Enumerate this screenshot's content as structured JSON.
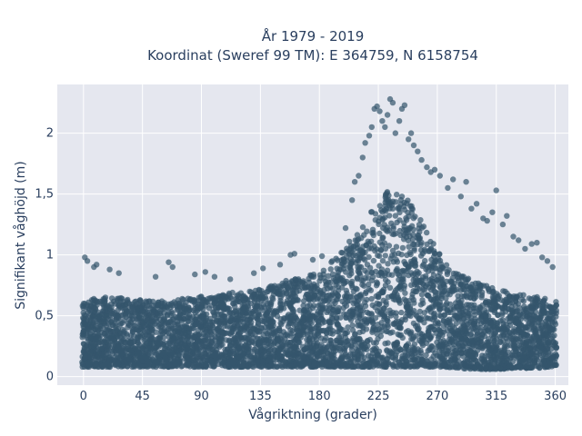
{
  "chart_data": {
    "type": "scatter",
    "title_line1": "År 1979 - 2019",
    "title_line2": "Koordinat (Sweref 99 TM): E 364759, N 6158754",
    "xlabel": "Vågriktning (grader)",
    "ylabel": "Signifikant våghöjd (m)",
    "xlim": [
      -20,
      370
    ],
    "ylim": [
      -0.07,
      2.4
    ],
    "xticks": [
      0,
      45,
      90,
      135,
      180,
      225,
      270,
      315,
      360
    ],
    "xtick_labels": [
      "0",
      "45",
      "90",
      "135",
      "180",
      "225",
      "270",
      "315",
      "360"
    ],
    "yticks": [
      0,
      0.5,
      1,
      1.5,
      2
    ],
    "ytick_labels": [
      "0",
      "0,5",
      "1",
      "1,5",
      "2"
    ],
    "grid": true,
    "marker_color": "#34566c",
    "plot_bg": "#e5e7ef",
    "envelope": {
      "direction": [
        0,
        15,
        30,
        45,
        60,
        75,
        90,
        105,
        120,
        135,
        150,
        165,
        180,
        195,
        205,
        215,
        225,
        235,
        245,
        255,
        265,
        275,
        285,
        300,
        315,
        330,
        345,
        360
      ],
      "min_height": [
        0.08,
        0.08,
        0.08,
        0.08,
        0.08,
        0.08,
        0.08,
        0.08,
        0.08,
        0.08,
        0.08,
        0.08,
        0.08,
        0.08,
        0.08,
        0.08,
        0.08,
        0.08,
        0.08,
        0.08,
        0.08,
        0.08,
        0.07,
        0.06,
        0.06,
        0.07,
        0.07,
        0.08
      ],
      "dense_max_height": [
        0.62,
        0.66,
        0.65,
        0.63,
        0.62,
        0.64,
        0.66,
        0.68,
        0.7,
        0.72,
        0.78,
        0.82,
        0.86,
        1.0,
        1.15,
        1.3,
        1.45,
        1.55,
        1.5,
        1.35,
        1.15,
        0.95,
        0.85,
        0.78,
        0.72,
        0.68,
        0.66,
        0.62
      ]
    },
    "outliers": [
      {
        "x": 1,
        "y": 0.98
      },
      {
        "x": 3,
        "y": 0.95
      },
      {
        "x": 8,
        "y": 0.9
      },
      {
        "x": 10,
        "y": 0.92
      },
      {
        "x": 20,
        "y": 0.88
      },
      {
        "x": 27,
        "y": 0.85
      },
      {
        "x": 55,
        "y": 0.82
      },
      {
        "x": 65,
        "y": 0.94
      },
      {
        "x": 68,
        "y": 0.9
      },
      {
        "x": 85,
        "y": 0.84
      },
      {
        "x": 93,
        "y": 0.86
      },
      {
        "x": 100,
        "y": 0.82
      },
      {
        "x": 112,
        "y": 0.8
      },
      {
        "x": 130,
        "y": 0.85
      },
      {
        "x": 137,
        "y": 0.89
      },
      {
        "x": 150,
        "y": 0.92
      },
      {
        "x": 158,
        "y": 1.0
      },
      {
        "x": 161,
        "y": 1.01
      },
      {
        "x": 175,
        "y": 0.96
      },
      {
        "x": 182,
        "y": 0.99
      },
      {
        "x": 200,
        "y": 1.22
      },
      {
        "x": 205,
        "y": 1.45
      },
      {
        "x": 207,
        "y": 1.6
      },
      {
        "x": 210,
        "y": 1.65
      },
      {
        "x": 213,
        "y": 1.8
      },
      {
        "x": 215,
        "y": 1.92
      },
      {
        "x": 218,
        "y": 1.98
      },
      {
        "x": 220,
        "y": 2.05
      },
      {
        "x": 222,
        "y": 2.2
      },
      {
        "x": 224,
        "y": 2.22
      },
      {
        "x": 226,
        "y": 2.18
      },
      {
        "x": 228,
        "y": 2.1
      },
      {
        "x": 230,
        "y": 2.05
      },
      {
        "x": 232,
        "y": 2.15
      },
      {
        "x": 234,
        "y": 2.28
      },
      {
        "x": 236,
        "y": 2.25
      },
      {
        "x": 238,
        "y": 2.0
      },
      {
        "x": 241,
        "y": 2.1
      },
      {
        "x": 243,
        "y": 2.2
      },
      {
        "x": 245,
        "y": 2.23
      },
      {
        "x": 248,
        "y": 1.95
      },
      {
        "x": 250,
        "y": 2.0
      },
      {
        "x": 252,
        "y": 1.9
      },
      {
        "x": 255,
        "y": 1.85
      },
      {
        "x": 258,
        "y": 1.78
      },
      {
        "x": 262,
        "y": 1.72
      },
      {
        "x": 265,
        "y": 1.68
      },
      {
        "x": 268,
        "y": 1.7
      },
      {
        "x": 272,
        "y": 1.65
      },
      {
        "x": 278,
        "y": 1.55
      },
      {
        "x": 282,
        "y": 1.62
      },
      {
        "x": 288,
        "y": 1.48
      },
      {
        "x": 292,
        "y": 1.6
      },
      {
        "x": 296,
        "y": 1.38
      },
      {
        "x": 300,
        "y": 1.42
      },
      {
        "x": 305,
        "y": 1.3
      },
      {
        "x": 308,
        "y": 1.28
      },
      {
        "x": 312,
        "y": 1.35
      },
      {
        "x": 315,
        "y": 1.53
      },
      {
        "x": 320,
        "y": 1.25
      },
      {
        "x": 323,
        "y": 1.32
      },
      {
        "x": 328,
        "y": 1.15
      },
      {
        "x": 332,
        "y": 1.12
      },
      {
        "x": 337,
        "y": 1.05
      },
      {
        "x": 342,
        "y": 1.09
      },
      {
        "x": 346,
        "y": 1.1
      },
      {
        "x": 350,
        "y": 0.98
      },
      {
        "x": 354,
        "y": 0.95
      },
      {
        "x": 358,
        "y": 0.9
      }
    ]
  }
}
